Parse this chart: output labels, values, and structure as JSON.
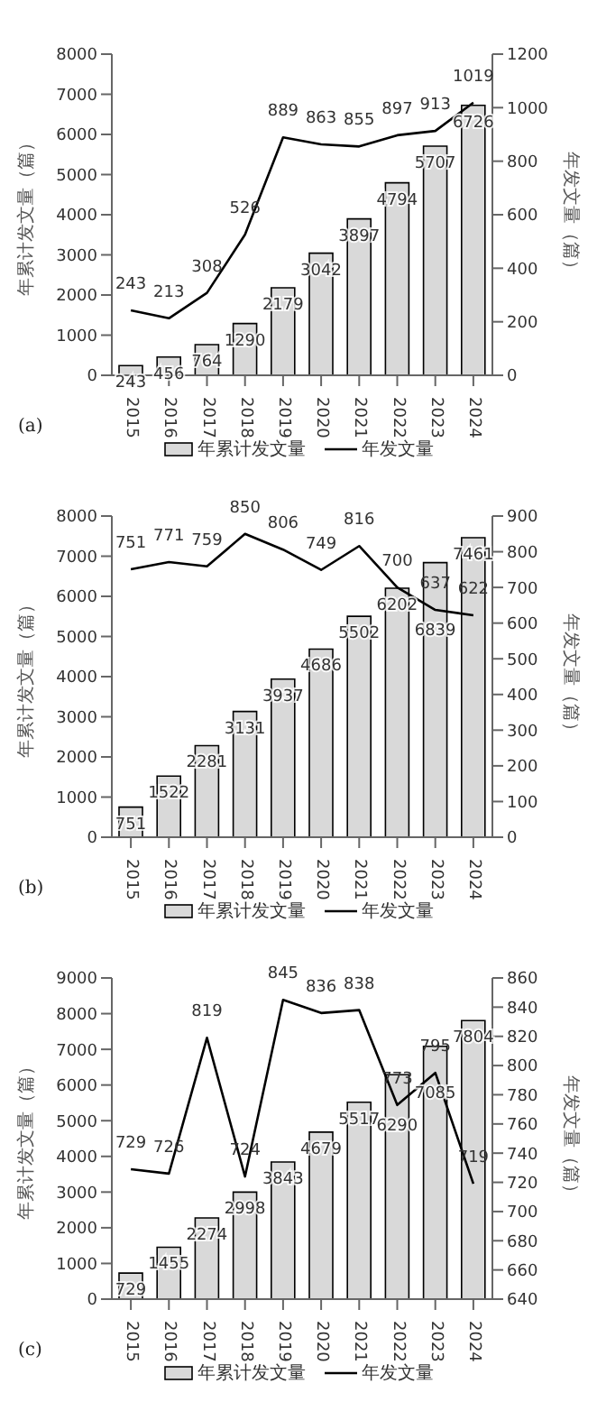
{
  "chart_data": [
    {
      "type": "bar",
      "categories": [
        "2015",
        "2016",
        "2017",
        "2018",
        "2019",
        "2020",
        "2021",
        "2022",
        "2023",
        "2024"
      ],
      "series": [
        {
          "name": "年累计发文量",
          "color": "#d9d9d9",
          "values": [
            243,
            456,
            764,
            1290,
            2179,
            3042,
            3897,
            4794,
            5707,
            6726
          ]
        },
        {
          "name": "年发文量",
          "type": "line",
          "axis": "y2",
          "color": "#000000",
          "values": [
            243,
            213,
            308,
            526,
            889,
            863,
            855,
            897,
            913,
            1019
          ]
        }
      ],
      "ylabel": "年累计发文量（篇）",
      "y2label": "年发文量（篇）",
      "ylim": [
        0,
        8000
      ],
      "yticks": [
        0,
        1000,
        2000,
        3000,
        4000,
        5000,
        6000,
        7000,
        8000
      ],
      "y2lim": [
        0,
        1200
      ],
      "y2ticks": [
        0,
        200,
        400,
        600,
        800,
        1000,
        1200
      ],
      "data_labels": true,
      "legend": "bottom",
      "marker": "none",
      "annotations": [
        "(a)"
      ]
    },
    {
      "type": "bar",
      "categories": [
        "2015",
        "2016",
        "2017",
        "2018",
        "2019",
        "2020",
        "2021",
        "2022",
        "2023",
        "2024"
      ],
      "series": [
        {
          "name": "年累计发文量",
          "color": "#d9d9d9",
          "values": [
            751,
            1522,
            2281,
            3131,
            3937,
            4686,
            5502,
            6202,
            6839,
            7461
          ]
        },
        {
          "name": "年发文量",
          "type": "line",
          "axis": "y2",
          "color": "#000000",
          "values": [
            751,
            771,
            759,
            850,
            806,
            749,
            816,
            700,
            637,
            622
          ]
        }
      ],
      "ylabel": "年累计发文量（篇）",
      "y2label": "年发文量（篇）",
      "ylim": [
        0,
        8000
      ],
      "yticks": [
        0,
        1000,
        2000,
        3000,
        4000,
        5000,
        6000,
        7000,
        8000
      ],
      "y2lim": [
        0,
        900
      ],
      "y2ticks": [
        0,
        100,
        200,
        300,
        400,
        500,
        600,
        700,
        800,
        900
      ],
      "data_labels": true,
      "legend": "bottom",
      "marker": "none",
      "annotations": [
        "(b)"
      ]
    },
    {
      "type": "bar",
      "categories": [
        "2015",
        "2016",
        "2017",
        "2018",
        "2019",
        "2020",
        "2021",
        "2022",
        "2023",
        "2024"
      ],
      "series": [
        {
          "name": "年累计发文量",
          "color": "#d9d9d9",
          "values": [
            729,
            1455,
            2274,
            2998,
            3843,
            4679,
            5517,
            6290,
            7085,
            7804
          ]
        },
        {
          "name": "年发文量",
          "type": "line",
          "axis": "y2",
          "color": "#000000",
          "values": [
            729,
            726,
            819,
            724,
            845,
            836,
            838,
            773,
            795,
            719
          ]
        }
      ],
      "ylabel": "年累计发文量（篇）",
      "y2label": "年发文量（篇）",
      "ylim": [
        0,
        9000
      ],
      "yticks": [
        0,
        1000,
        2000,
        3000,
        4000,
        5000,
        6000,
        7000,
        8000,
        9000
      ],
      "y2lim": [
        640,
        860
      ],
      "y2ticks": [
        640,
        660,
        680,
        700,
        720,
        740,
        760,
        780,
        800,
        820,
        840,
        860
      ],
      "data_labels": true,
      "legend": "bottom",
      "marker": "none",
      "annotations": [
        "(c)"
      ]
    }
  ]
}
